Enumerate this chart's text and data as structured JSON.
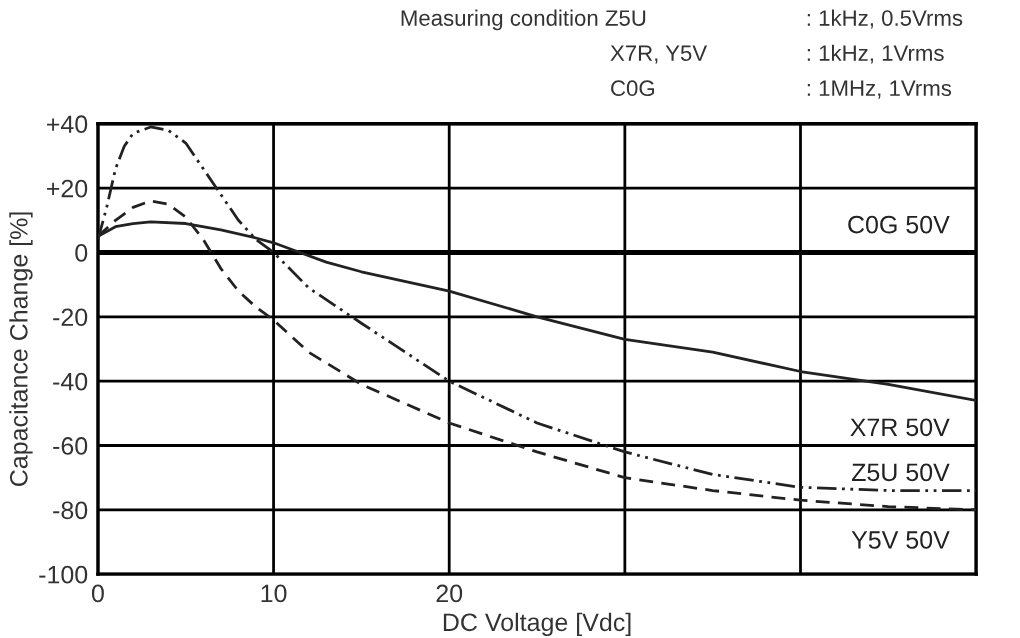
{
  "chart_data": {
    "type": "line",
    "xlabel": "DC Voltage [Vdc]",
    "ylabel": "Capacitance Change [%]",
    "annotations": [
      "Measuring condition Z5U",
      ": 1kHz, 0.5Vrms",
      "X7R, Y5V",
      ": 1kHz, 1Vrms",
      "C0G",
      ": 1MHz, 1Vrms"
    ],
    "xlim": [
      0,
      50
    ],
    "ylim": [
      -100,
      40
    ],
    "xticks": [
      0,
      10,
      20,
      {
        "value": 30,
        "label": null
      },
      {
        "value": 40,
        "label": null
      },
      {
        "value": 50,
        "label": null
      }
    ],
    "yticks": [
      {
        "value": 40,
        "label": "+40"
      },
      {
        "value": 20,
        "label": "+20"
      },
      0,
      -20,
      -40,
      -60,
      -80,
      -100
    ],
    "grid": true,
    "legend": false,
    "series": [
      {
        "name": "C0G 50V",
        "color": "#000000",
        "line_style": "solid",
        "x": [
          0,
          50
        ],
        "values": [
          0,
          0
        ]
      },
      {
        "name": "X7R 50V",
        "color": "#222222",
        "line_style": "solid",
        "x": [
          0,
          1,
          2,
          3,
          5,
          7,
          9,
          10,
          11,
          13,
          15,
          20,
          25,
          30,
          35,
          40,
          45,
          50
        ],
        "values": [
          5,
          8,
          9,
          9.5,
          9,
          7,
          4.5,
          3,
          1,
          -3,
          -6,
          -12,
          -20,
          -27,
          -31,
          -37,
          -41,
          -46
        ]
      },
      {
        "name": "Z5U 50V",
        "color": "#222222",
        "line_style": "dashdot",
        "x": [
          0,
          0.5,
          1,
          1.5,
          2,
          3,
          4,
          5,
          6,
          7,
          8,
          9,
          10,
          12,
          15,
          20,
          25,
          30,
          35,
          40,
          45,
          50
        ],
        "values": [
          4,
          14,
          26,
          33,
          37,
          39,
          38,
          34,
          26,
          18,
          10,
          4,
          0,
          -11,
          -22,
          -40,
          -53,
          -62,
          -69,
          -73,
          -74,
          -74
        ]
      },
      {
        "name": "Y5V 50V",
        "color": "#222222",
        "line_style": "dashed",
        "x": [
          0,
          1,
          2,
          3,
          4,
          5,
          6,
          7,
          8,
          9,
          10,
          12,
          15,
          20,
          25,
          30,
          35,
          40,
          45,
          50
        ],
        "values": [
          5,
          10,
          14,
          16,
          15,
          11,
          4,
          -5,
          -12,
          -17,
          -21,
          -31,
          -41,
          -53,
          -62,
          -70,
          -74,
          -77,
          -79,
          -80
        ]
      }
    ]
  }
}
